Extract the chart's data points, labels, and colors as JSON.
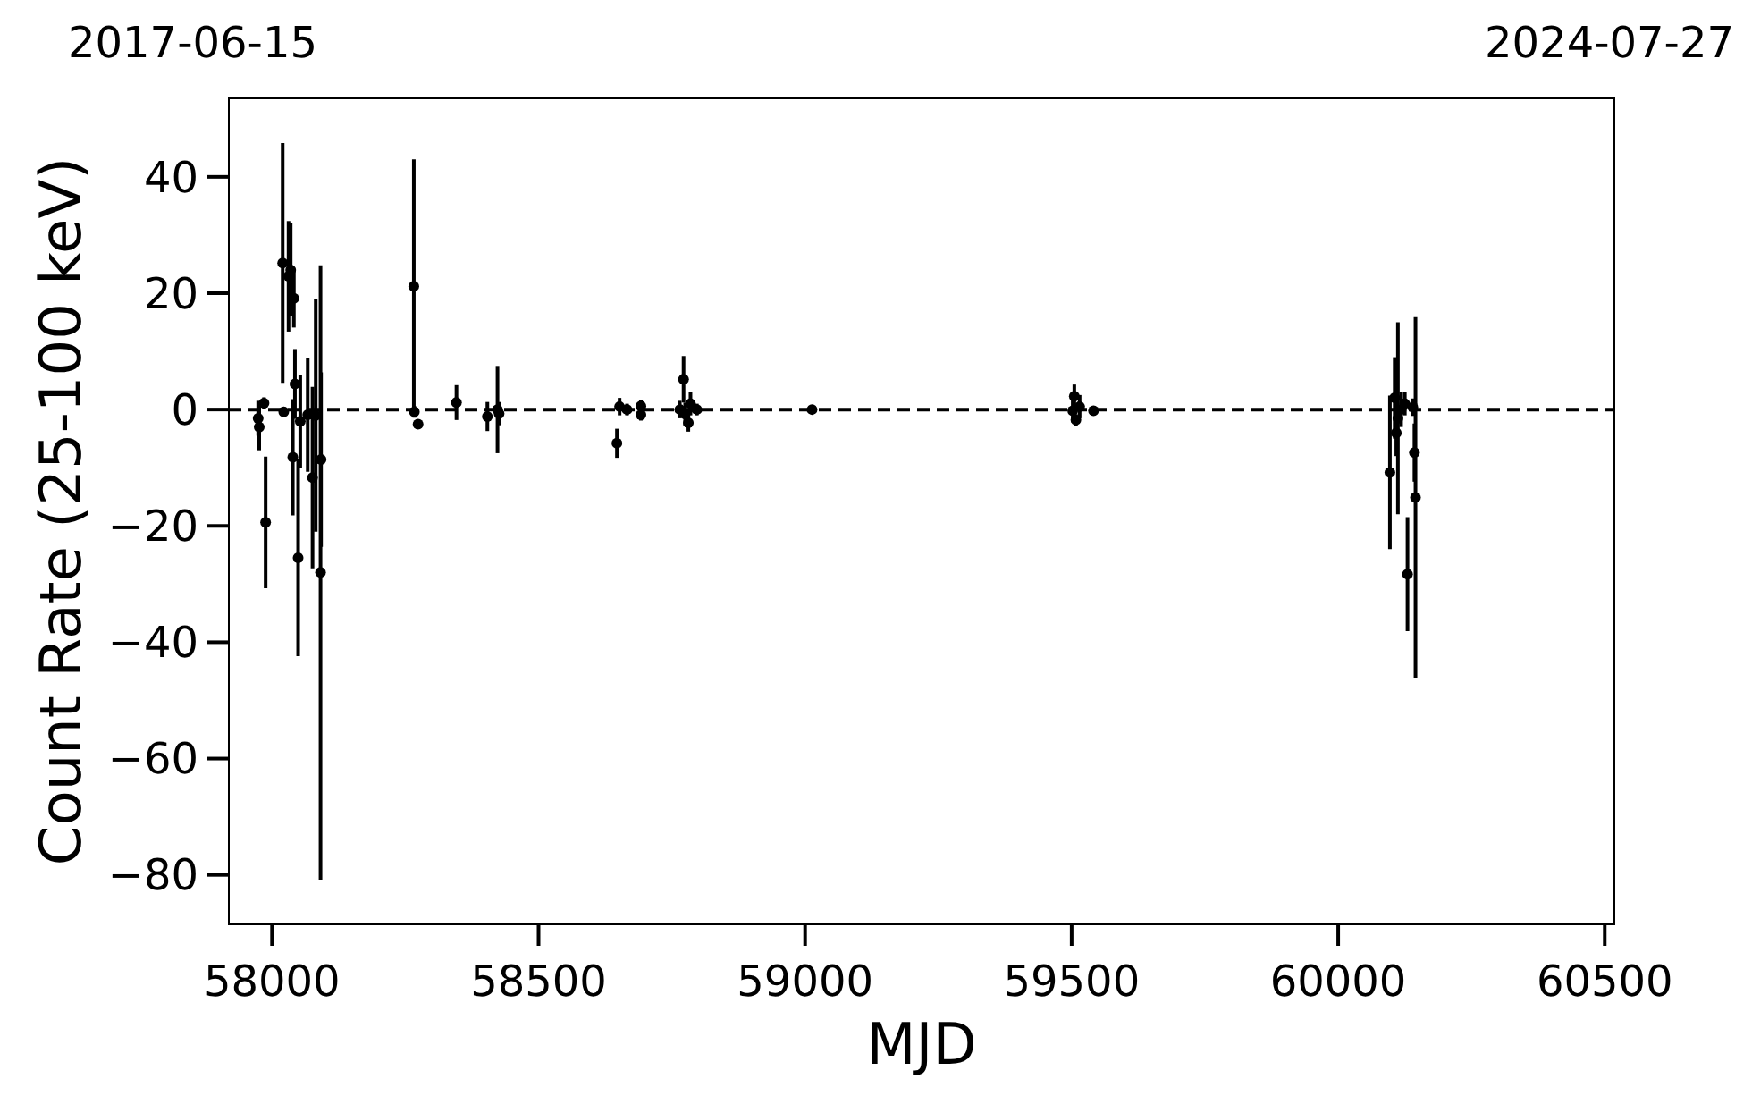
{
  "chart_data": {
    "type": "scatter",
    "xlabel": "MJD",
    "ylabel": "Count Rate (25-100 keV)",
    "annotations": [
      "2017-06-15",
      "2024-07-27"
    ],
    "xlim": [
      57919,
      60518
    ],
    "ylim": [
      -88.5,
      53.5
    ],
    "xticks": [
      58000,
      58500,
      59000,
      59500,
      60000,
      60500
    ],
    "yticks": [
      {
        "value": -80,
        "label": "−80"
      },
      {
        "value": -60,
        "label": "−60"
      },
      {
        "value": -40,
        "label": "−40"
      },
      {
        "value": -20,
        "label": "−20"
      },
      0,
      20,
      40
    ],
    "grid": false,
    "marker": "circle",
    "ref_lines": [
      {
        "axis": "y",
        "value": 0,
        "color": "#000000",
        "line_style": "dashed"
      }
    ],
    "series": [
      {
        "color": "#000000",
        "x": [
          57974,
          57976,
          57985,
          57988,
          58020,
          58022,
          58031,
          58035,
          58041,
          58043,
          58039,
          58049,
          58053,
          58067,
          58076,
          58082,
          58091,
          58092,
          58266,
          58267,
          58274,
          58346,
          58404,
          58423,
          58426,
          58647,
          58652,
          58666,
          58692,
          58692,
          58765,
          58772,
          58775,
          58781,
          58785,
          58797,
          59013,
          59502,
          59505,
          59508,
          59515,
          59541,
          60097,
          60106,
          60109,
          60112,
          60118,
          60125,
          60130,
          60140,
          60143,
          60145
        ],
        "values": [
          -1.5,
          -3,
          1.1,
          -19.4,
          25.2,
          -0.4,
          22.9,
          24,
          19.1,
          4.4,
          -8.2,
          -25.5,
          -2,
          -0.9,
          -11.7,
          -1,
          -28,
          -8.6,
          21.2,
          -0.4,
          -2.5,
          1.2,
          -1.2,
          0,
          -0.7,
          -5.8,
          0.5,
          0,
          0.6,
          -0.9,
          0,
          5.2,
          -0.8,
          -2.3,
          1,
          0,
          0,
          -0.2,
          2.3,
          -1.8,
          0.5,
          -0.2,
          -10.8,
          2,
          -4,
          -1.5,
          0,
          1,
          -28.3,
          0.4,
          -7.4,
          -15.1
        ],
        "errors": [
          3,
          4,
          1,
          11.3,
          20.6,
          0.8,
          9.5,
          8,
          5,
          6,
          10,
          16.9,
          8,
          9.8,
          15.6,
          20,
          52.8,
          15,
          21.8,
          1,
          0.8,
          3,
          2.5,
          7.5,
          2,
          2.5,
          1.5,
          1,
          1,
          1,
          1.5,
          4,
          2,
          1.5,
          2,
          1,
          0.5,
          2,
          2,
          1,
          2,
          0.8,
          13.2,
          7,
          4,
          16.5,
          3,
          2,
          9.8,
          1.5,
          5,
          31
        ]
      }
    ]
  }
}
